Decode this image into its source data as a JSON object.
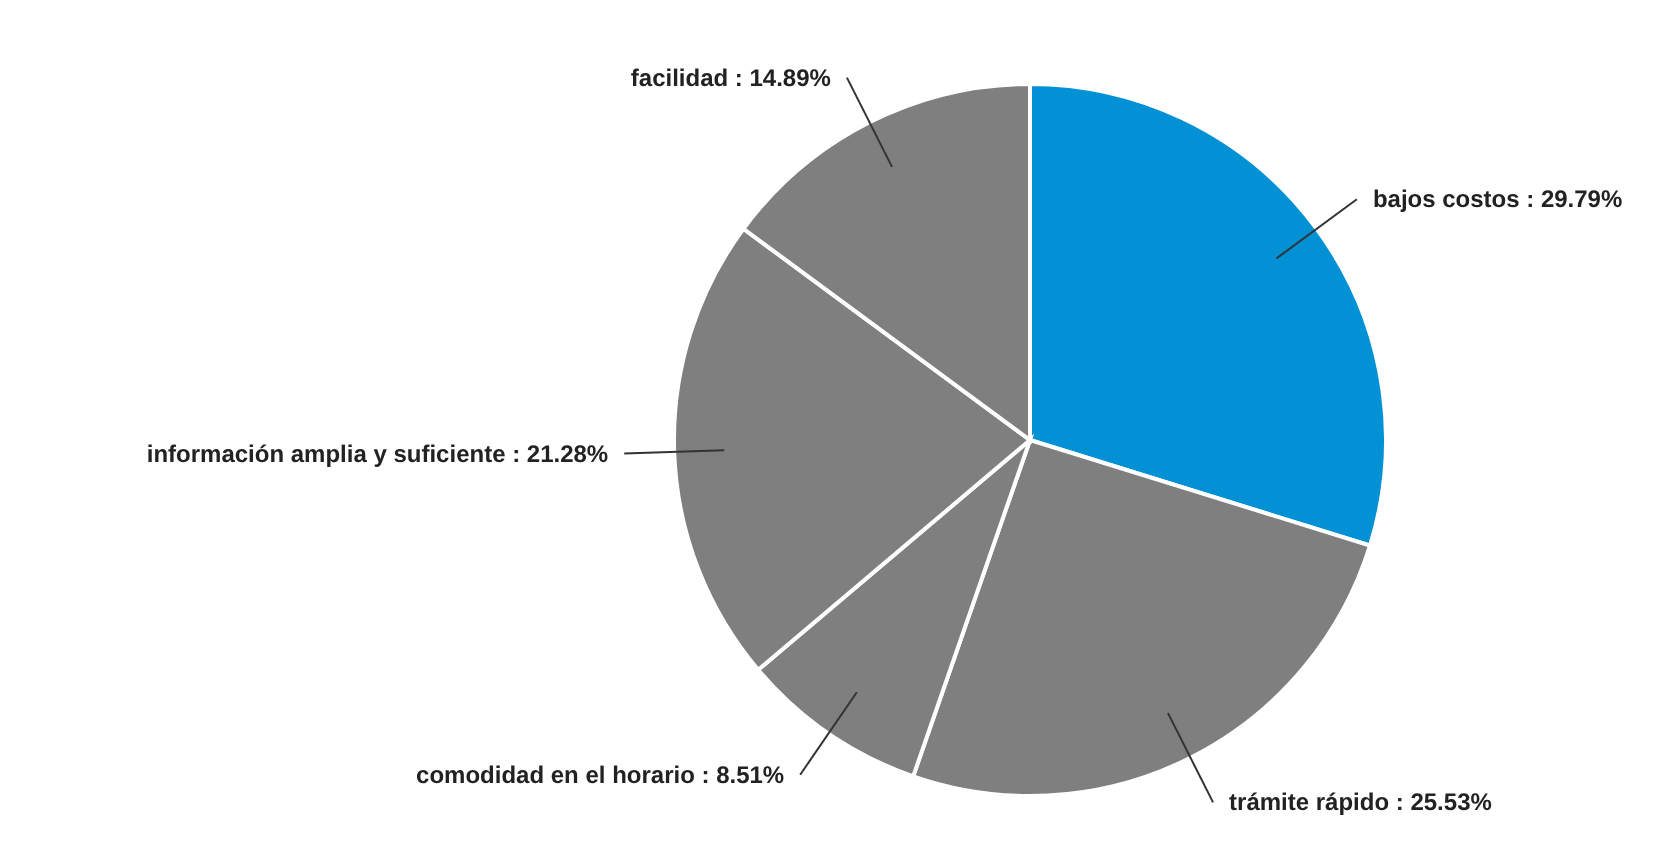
{
  "chart_data": {
    "type": "pie",
    "categories": [
      "bajos costos",
      "trámite rápido",
      "comodidad en el horario",
      "información amplia y suficiente",
      "facilidad"
    ],
    "values": [
      29.79,
      25.53,
      8.51,
      21.28,
      14.89
    ],
    "colors": [
      "#0391d6",
      "#7f7f7f",
      "#7f7f7f",
      "#7f7f7f",
      "#7f7f7f"
    ],
    "value_labels": [
      "29.79%",
      "25.53%",
      "8.51%",
      "21.28%",
      "14.89%"
    ],
    "legend": false
  }
}
